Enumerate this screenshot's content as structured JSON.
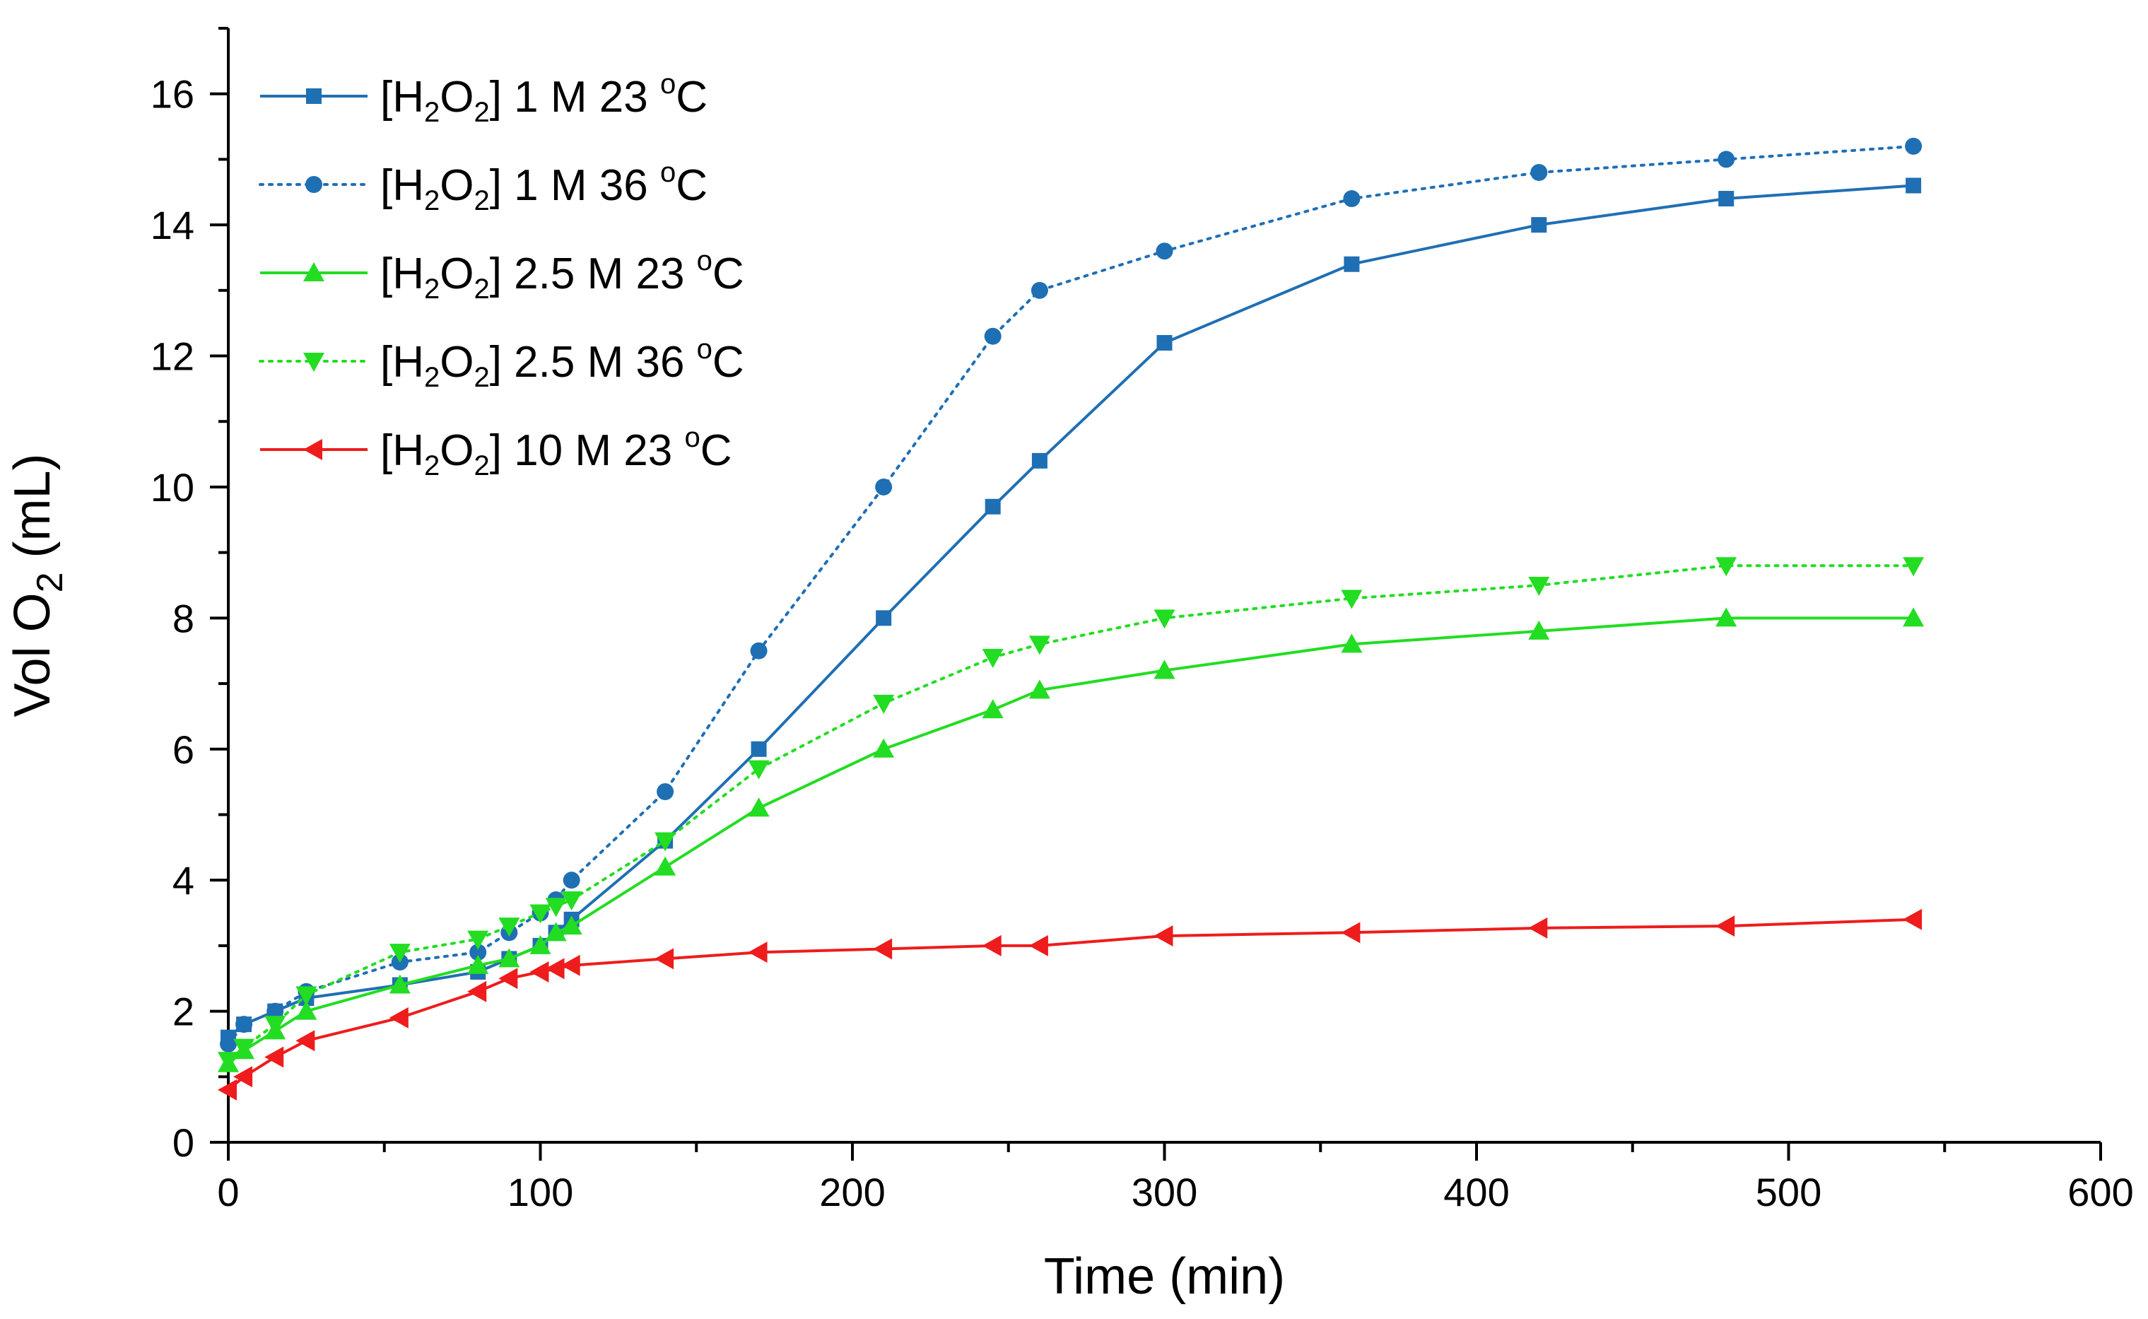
{
  "chart_data": {
    "type": "line",
    "title": "",
    "xlabel": "Time (min)",
    "ylabel": {
      "main": "Vol O",
      "sub": "2",
      "unit": " (mL)"
    },
    "xlim": [
      0,
      600
    ],
    "ylim": [
      0,
      17
    ],
    "xticks": [
      0,
      100,
      200,
      300,
      400,
      500,
      600
    ],
    "yticks": [
      0,
      2,
      4,
      6,
      8,
      10,
      12,
      14,
      16
    ],
    "grid": false,
    "legend_position": "top-left",
    "series": [
      {
        "name": "[H2O2] 1 M 23 oC",
        "legend": {
          "concentration": "1 M",
          "temperature": "23",
          "degree": "o",
          "unit": "C"
        },
        "color": "#1f6fb4",
        "dash": "solid",
        "marker": "square",
        "x": [
          0,
          5,
          15,
          25,
          55,
          80,
          90,
          100,
          105,
          110,
          140,
          170,
          210,
          245,
          260,
          300,
          360,
          420,
          480,
          540
        ],
        "y": [
          1.6,
          1.8,
          2.0,
          2.2,
          2.4,
          2.6,
          2.8,
          3.0,
          3.2,
          3.4,
          4.6,
          6.0,
          8.0,
          9.7,
          10.4,
          12.2,
          13.4,
          14.0,
          14.4,
          14.6
        ]
      },
      {
        "name": "[H2O2] 1 M 36 oC",
        "legend": {
          "concentration": "1 M",
          "temperature": "36",
          "degree": "o",
          "unit": "C"
        },
        "color": "#1f6fb4",
        "dash": "dotted",
        "marker": "circle",
        "x": [
          0,
          5,
          15,
          25,
          55,
          80,
          90,
          100,
          105,
          110,
          140,
          170,
          210,
          245,
          260,
          300,
          360,
          420,
          480,
          540
        ],
        "y": [
          1.5,
          1.8,
          2.0,
          2.3,
          2.75,
          2.9,
          3.2,
          3.5,
          3.7,
          4.0,
          5.35,
          7.5,
          10.0,
          12.3,
          13.0,
          13.6,
          14.4,
          14.8,
          15.0,
          15.2
        ]
      },
      {
        "name": "[H2O2] 2.5 M 23 oC",
        "legend": {
          "concentration": "2.5 M",
          "temperature": "23",
          "degree": "o",
          "unit": "C"
        },
        "color": "#22dd22",
        "dash": "solid",
        "marker": "triangle-up",
        "x": [
          0,
          5,
          15,
          25,
          55,
          80,
          90,
          100,
          105,
          110,
          140,
          170,
          210,
          245,
          260,
          300,
          360,
          420,
          480,
          540
        ],
        "y": [
          1.2,
          1.4,
          1.7,
          2.0,
          2.4,
          2.7,
          2.8,
          3.0,
          3.2,
          3.3,
          4.2,
          5.1,
          6.0,
          6.6,
          6.9,
          7.2,
          7.6,
          7.8,
          8.0,
          8.0
        ]
      },
      {
        "name": "[H2O2] 2.5 M 36 oC",
        "legend": {
          "concentration": "2.5 M",
          "temperature": "36",
          "degree": "o",
          "unit": "C"
        },
        "color": "#22dd22",
        "dash": "dotted",
        "marker": "triangle-down",
        "x": [
          0,
          5,
          15,
          25,
          55,
          80,
          90,
          100,
          105,
          110,
          140,
          170,
          210,
          245,
          260,
          300,
          360,
          420,
          480,
          540
        ],
        "y": [
          1.25,
          1.45,
          1.8,
          2.25,
          2.9,
          3.1,
          3.3,
          3.5,
          3.6,
          3.7,
          4.6,
          5.7,
          6.7,
          7.4,
          7.6,
          8.0,
          8.3,
          8.5,
          8.8,
          8.8
        ]
      },
      {
        "name": "[H2O2] 10 M 23 oC",
        "legend": {
          "concentration": "10 M",
          "temperature": "23",
          "degree": "o",
          "unit": "C"
        },
        "color": "#ee1c1c",
        "dash": "solid",
        "marker": "triangle-left",
        "x": [
          0,
          5,
          15,
          25,
          55,
          80,
          90,
          100,
          105,
          110,
          140,
          170,
          210,
          245,
          260,
          300,
          360,
          420,
          480,
          540
        ],
        "y": [
          0.8,
          1.0,
          1.3,
          1.55,
          1.9,
          2.3,
          2.5,
          2.6,
          2.65,
          2.7,
          2.8,
          2.9,
          2.95,
          3.0,
          3.0,
          3.15,
          3.2,
          3.27,
          3.3,
          3.4
        ]
      }
    ]
  }
}
